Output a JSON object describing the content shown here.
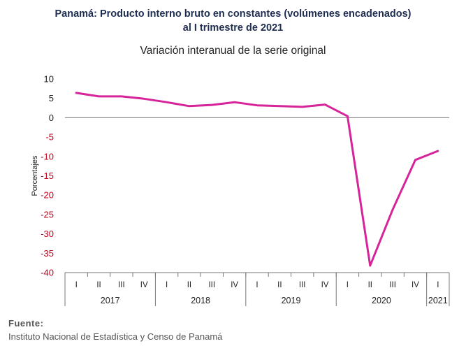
{
  "chart_data": {
    "type": "line",
    "title_line1": "Panamá: Producto interno bruto en constantes (volúmenes encadenados)",
    "title_line2": "al I trimestre de 2021",
    "subtitle": "Variación interanual de la serie original",
    "ylabel": "Porcentajes",
    "xlabel": "",
    "ylim": [
      -40,
      10
    ],
    "yticks": [
      10,
      5,
      0,
      -5,
      -10,
      -15,
      -20,
      -25,
      -30,
      -35,
      -40
    ],
    "grid": false,
    "quarters": [
      "I",
      "II",
      "III",
      "IV",
      "I",
      "II",
      "III",
      "IV",
      "I",
      "II",
      "III",
      "IV",
      "I",
      "II",
      "III",
      "IV",
      "I"
    ],
    "years": [
      {
        "label": "2017",
        "count": 4
      },
      {
        "label": "2018",
        "count": 4
      },
      {
        "label": "2019",
        "count": 4
      },
      {
        "label": "2020",
        "count": 4
      },
      {
        "label": "2021",
        "count": 1
      }
    ],
    "series": [
      {
        "values": [
          6.4,
          5.5,
          5.5,
          4.9,
          4.0,
          3.0,
          3.3,
          4.0,
          3.2,
          3.0,
          2.8,
          3.4,
          0.4,
          -38.2,
          -23.7,
          -10.9,
          -8.6
        ],
        "color": "#d6249a"
      }
    ]
  },
  "source": {
    "label": "Fuente:",
    "text": "Instituto Nacional de Estadística y Censo de Panamá"
  }
}
